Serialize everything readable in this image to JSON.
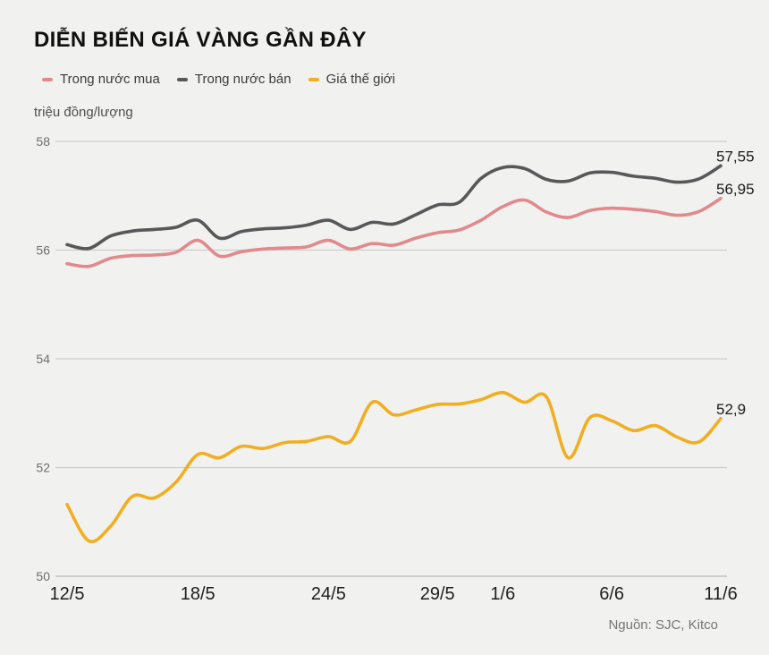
{
  "title": "DIỄN BIẾN GIÁ VÀNG GẦN ĐÂY",
  "unit_label": "triệu đồng/lượng",
  "source": "Nguồn: SJC, Kitco",
  "colors": {
    "background": "#f1f1ef",
    "grid": "#cdcdcb",
    "axis": "#b9b9b7",
    "y_tick_text": "#6e6e6e",
    "x_tick_text": "#1e1e1e",
    "end_label_text": "#1a1a1a",
    "buy_line": "#e08a8d",
    "sell_line": "#58585a",
    "world_line": "#f0ae21"
  },
  "legend": {
    "items": [
      {
        "label": "Trong nước mua",
        "color": "#e08a8d"
      },
      {
        "label": "Trong nước bán",
        "color": "#58585a"
      },
      {
        "label": "Giá thế giới",
        "color": "#f0ae21"
      }
    ]
  },
  "chart_data": {
    "type": "line",
    "title": "DIỄN BIẾN GIÁ VÀNG GẦN ĐÂY",
    "ylabel": "triệu đồng/lượng",
    "y_range": [
      50,
      58
    ],
    "y_ticks": [
      58,
      56,
      54,
      52,
      50
    ],
    "x_day_span": 30,
    "x_ticks": [
      {
        "label": "12/5",
        "day": 0
      },
      {
        "label": "18/5",
        "day": 6
      },
      {
        "label": "24/5",
        "day": 12
      },
      {
        "label": "29/5",
        "day": 17
      },
      {
        "label": "1/6",
        "day": 20
      },
      {
        "label": "6/6",
        "day": 25
      },
      {
        "label": "11/6",
        "day": 30
      }
    ],
    "legend_position": "top-left",
    "grid": true,
    "series": [
      {
        "id": "trong-nuoc-mua",
        "name": "Trong nước mua",
        "color": "#e08a8d",
        "end_label": "56,95",
        "values": [
          55.75,
          55.7,
          55.85,
          55.9,
          55.91,
          55.96,
          56.18,
          55.89,
          55.97,
          56.02,
          56.04,
          56.06,
          56.18,
          56.02,
          56.12,
          56.09,
          56.22,
          56.32,
          56.37,
          56.55,
          56.8,
          56.92,
          56.7,
          56.6,
          56.73,
          56.77,
          56.75,
          56.71,
          56.64,
          56.71,
          56.95
        ]
      },
      {
        "id": "trong-nuoc-ban",
        "name": "Trong nước bán",
        "color": "#58585a",
        "end_label": "57,55",
        "values": [
          56.1,
          56.03,
          56.26,
          56.35,
          56.38,
          56.42,
          56.55,
          56.22,
          56.34,
          56.39,
          56.41,
          56.46,
          56.55,
          56.38,
          56.51,
          56.48,
          56.65,
          56.83,
          56.88,
          57.32,
          57.52,
          57.5,
          57.3,
          57.27,
          57.42,
          57.43,
          57.36,
          57.32,
          57.25,
          57.31,
          57.55
        ]
      },
      {
        "id": "gia-the-gioi",
        "name": "Giá thế giới",
        "color": "#f0ae21",
        "end_label": "52,9",
        "values": [
          51.32,
          50.65,
          50.92,
          51.47,
          51.44,
          51.73,
          52.24,
          52.18,
          52.39,
          52.35,
          52.46,
          52.48,
          52.57,
          52.48,
          53.2,
          52.97,
          53.06,
          53.16,
          53.17,
          53.25,
          53.38,
          53.2,
          53.3,
          52.18,
          52.92,
          52.86,
          52.68,
          52.77,
          52.56,
          52.47,
          52.9
        ]
      }
    ]
  }
}
